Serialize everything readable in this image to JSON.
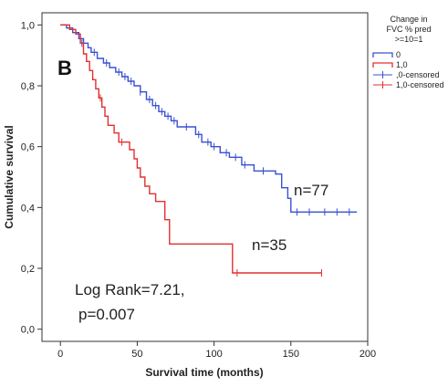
{
  "chart_data": {
    "type": "line",
    "panel_label": "B",
    "xlabel": "Survival time (months)",
    "ylabel": "Cumulative survival",
    "xlim": [
      -12,
      200
    ],
    "ylim": [
      -0.04,
      1.04
    ],
    "x_ticks": [
      {
        "value": 0,
        "label": "0"
      },
      {
        "value": 50,
        "label": "50"
      },
      {
        "value": 100,
        "label": "100"
      },
      {
        "value": 150,
        "label": "150"
      },
      {
        "value": 200,
        "label": "200"
      }
    ],
    "y_ticks": [
      {
        "value": 0.0,
        "label": "0,0"
      },
      {
        "value": 0.2,
        "label": "0,2"
      },
      {
        "value": 0.4,
        "label": "0,4"
      },
      {
        "value": 0.6,
        "label": "0,6"
      },
      {
        "value": 0.8,
        "label": "0,8"
      },
      {
        "value": 1.0,
        "label": "1,0"
      }
    ],
    "grid": false,
    "legend": {
      "placement": "right",
      "title_lines": [
        "Change in",
        "FVC % pred",
        ">=10=1"
      ],
      "entries": [
        {
          "label": "0",
          "color": "#3a50d0",
          "kind": "line"
        },
        {
          "label": "1,0",
          "color": "#e03030",
          "kind": "line"
        },
        {
          "label": ",0-censored",
          "color": "#3a50d0",
          "kind": "cross"
        },
        {
          "label": "1,0-censored",
          "color": "#e03030",
          "kind": "cross"
        }
      ]
    },
    "series": [
      {
        "name": "0",
        "color": "#3a50d0",
        "steps": [
          [
            0,
            1.0
          ],
          [
            4,
            0.99
          ],
          [
            8,
            0.975
          ],
          [
            12,
            0.955
          ],
          [
            15,
            0.94
          ],
          [
            18,
            0.925
          ],
          [
            20,
            0.91
          ],
          [
            24,
            0.89
          ],
          [
            28,
            0.875
          ],
          [
            32,
            0.86
          ],
          [
            36,
            0.845
          ],
          [
            40,
            0.83
          ],
          [
            44,
            0.815
          ],
          [
            48,
            0.8
          ],
          [
            52,
            0.78
          ],
          [
            56,
            0.755
          ],
          [
            60,
            0.735
          ],
          [
            64,
            0.715
          ],
          [
            68,
            0.7
          ],
          [
            72,
            0.685
          ],
          [
            76,
            0.665
          ],
          [
            88,
            0.64
          ],
          [
            92,
            0.615
          ],
          [
            98,
            0.6
          ],
          [
            104,
            0.58
          ],
          [
            110,
            0.565
          ],
          [
            118,
            0.54
          ],
          [
            126,
            0.52
          ],
          [
            140,
            0.51
          ],
          [
            144,
            0.465
          ],
          [
            148,
            0.43
          ],
          [
            150,
            0.385
          ],
          [
            193,
            0.385
          ]
        ],
        "censored": [
          [
            14,
            0.94
          ],
          [
            22,
            0.91
          ],
          [
            30,
            0.875
          ],
          [
            38,
            0.845
          ],
          [
            42,
            0.83
          ],
          [
            46,
            0.815
          ],
          [
            52,
            0.78
          ],
          [
            58,
            0.755
          ],
          [
            62,
            0.735
          ],
          [
            66,
            0.715
          ],
          [
            70,
            0.7
          ],
          [
            74,
            0.685
          ],
          [
            82,
            0.665
          ],
          [
            90,
            0.64
          ],
          [
            96,
            0.615
          ],
          [
            100,
            0.6
          ],
          [
            108,
            0.58
          ],
          [
            114,
            0.565
          ],
          [
            120,
            0.54
          ],
          [
            132,
            0.52
          ],
          [
            154,
            0.385
          ],
          [
            162,
            0.385
          ],
          [
            172,
            0.385
          ],
          [
            180,
            0.385
          ],
          [
            188,
            0.385
          ]
        ]
      },
      {
        "name": "1,0",
        "color": "#e03030",
        "steps": [
          [
            0,
            1.0
          ],
          [
            6,
            0.985
          ],
          [
            10,
            0.97
          ],
          [
            13,
            0.94
          ],
          [
            15,
            0.905
          ],
          [
            17,
            0.88
          ],
          [
            19,
            0.85
          ],
          [
            21,
            0.82
          ],
          [
            23,
            0.79
          ],
          [
            25,
            0.76
          ],
          [
            27,
            0.73
          ],
          [
            29,
            0.7
          ],
          [
            31,
            0.67
          ],
          [
            35,
            0.645
          ],
          [
            38,
            0.615
          ],
          [
            45,
            0.59
          ],
          [
            48,
            0.56
          ],
          [
            50,
            0.53
          ],
          [
            52,
            0.5
          ],
          [
            55,
            0.47
          ],
          [
            58,
            0.445
          ],
          [
            62,
            0.42
          ],
          [
            68,
            0.36
          ],
          [
            71,
            0.28
          ],
          [
            110,
            0.28
          ],
          [
            112,
            0.185
          ],
          [
            170,
            0.185
          ]
        ],
        "censored": [
          [
            26,
            0.76
          ],
          [
            40,
            0.615
          ],
          [
            115,
            0.185
          ],
          [
            170,
            0.185
          ]
        ]
      }
    ],
    "annotations": {
      "n_blue": "n=77",
      "n_red": "n=35",
      "logrank_line1": "Log Rank=7.21,",
      "logrank_line2": "p=0.007"
    }
  }
}
